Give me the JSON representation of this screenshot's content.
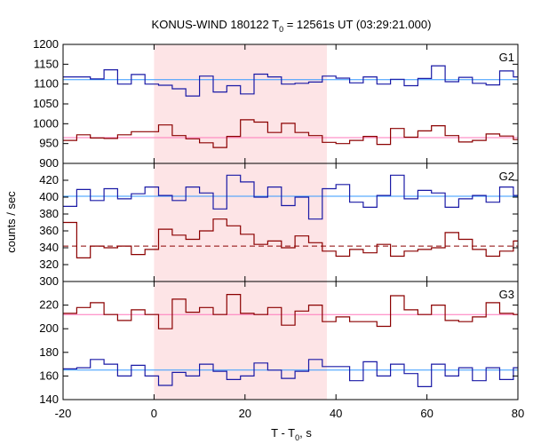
{
  "chart_data": {
    "type": "line",
    "title": "KONUS-WIND 180122 T",
    "title_sub": "0",
    "title_rest": " = 12561s UT (03:29:21.000)",
    "xlabel": "T - T",
    "xlabel_sub": "0",
    "xlabel_rest": ", s",
    "ylabel": "counts / sec",
    "xlim": [
      -20,
      80
    ],
    "x_ticks": [
      -20,
      0,
      20,
      40,
      60,
      80
    ],
    "x_tick_labels": [
      "-20",
      "0",
      "20",
      "40",
      "60",
      "80"
    ],
    "shaded_interval": [
      0,
      38
    ],
    "colors": {
      "dark_red": "#8b0000",
      "blue": "#1a1aa6",
      "pink": "#ff77bb",
      "light_blue": "#3399ff",
      "shade": "#fde4e6"
    },
    "panels": [
      {
        "label": "G1",
        "ylim": [
          900,
          1200
        ],
        "y_ticks": [
          900,
          950,
          1000,
          1050,
          1100,
          1150,
          1200
        ],
        "y_tick_labels": [
          "900",
          "950",
          "1000",
          "1050",
          "1100",
          "1150",
          "1200"
        ],
        "series": [
          {
            "color": "blue",
            "bg_level": 1111,
            "bg_color": "light_blue",
            "bg_dashed": false,
            "x": [
              -20,
              -17,
              -14,
              -11,
              -8,
              -5,
              -2,
              1,
              4,
              7,
              10,
              13,
              16,
              19,
              22,
              25,
              28,
              31,
              34,
              37,
              40,
              43,
              46,
              49,
              52,
              55,
              58,
              61,
              64,
              67,
              70,
              73,
              76,
              79
            ],
            "values": [
              1118,
              1118,
              1113,
              1136,
              1100,
              1124,
              1100,
              1097,
              1088,
              1070,
              1120,
              1080,
              1096,
              1075,
              1125,
              1118,
              1100,
              1102,
              1105,
              1120,
              1115,
              1103,
              1118,
              1100,
              1112,
              1096,
              1114,
              1146,
              1106,
              1117,
              1102,
              1098,
              1133,
              1118
            ]
          },
          {
            "color": "dark_red",
            "bg_level": 965,
            "bg_color": "pink",
            "bg_dashed": false,
            "x": [
              -20,
              -17,
              -14,
              -11,
              -8,
              -5,
              -2,
              1,
              4,
              7,
              10,
              13,
              16,
              19,
              22,
              25,
              28,
              31,
              34,
              37,
              40,
              43,
              46,
              49,
              52,
              55,
              58,
              61,
              64,
              67,
              70,
              73,
              76,
              79
            ],
            "values": [
              958,
              972,
              964,
              963,
              972,
              980,
              980,
              997,
              970,
              962,
              952,
              940,
              968,
              1010,
              1004,
              978,
              1001,
              978,
              970,
              953,
              950,
              958,
              968,
              948,
              988,
              966,
              982,
              995,
              970,
              954,
              958,
              974,
              969,
              960
            ]
          }
        ]
      },
      {
        "label": "G2",
        "ylim": [
          300,
          440
        ],
        "y_ticks": [
          300,
          320,
          340,
          360,
          380,
          400,
          420
        ],
        "y_tick_labels": [
          "300",
          "320",
          "340",
          "360",
          "380",
          "400",
          "420"
        ],
        "series": [
          {
            "color": "blue",
            "bg_level": 401,
            "bg_color": "light_blue",
            "bg_dashed": false,
            "x": [
              -20,
              -17,
              -14,
              -11,
              -8,
              -5,
              -2,
              1,
              4,
              7,
              10,
              13,
              16,
              19,
              22,
              25,
              28,
              31,
              34,
              37,
              40,
              43,
              46,
              49,
              52,
              55,
              58,
              61,
              64,
              67,
              70,
              73,
              76,
              79
            ],
            "values": [
              389,
              409,
              396,
              410,
              398,
              404,
              412,
              402,
              396,
              412,
              405,
              386,
              426,
              418,
              400,
              412,
              390,
              400,
              374,
              410,
              415,
              394,
              388,
              402,
              426,
              398,
              408,
              405,
              388,
              398,
              402,
              394,
              412,
              402
            ]
          },
          {
            "color": "dark_red",
            "bg_level": 342,
            "bg_color": "dark_red",
            "bg_dashed": true,
            "x": [
              -20,
              -17,
              -14,
              -11,
              -8,
              -5,
              -2,
              1,
              4,
              7,
              10,
              13,
              16,
              19,
              22,
              25,
              28,
              31,
              34,
              37,
              40,
              43,
              46,
              49,
              52,
              55,
              58,
              61,
              64,
              67,
              70,
              73,
              76,
              79
            ],
            "values": [
              370,
              328,
              342,
              340,
              342,
              332,
              338,
              362,
              355,
              350,
              360,
              374,
              366,
              356,
              344,
              348,
              340,
              354,
              346,
              336,
              330,
              338,
              334,
              344,
              330,
              336,
              338,
              340,
              358,
              350,
              338,
              330,
              336,
              348
            ]
          }
        ]
      },
      {
        "label": "G3",
        "ylim": [
          140,
          240
        ],
        "y_ticks": [
          140,
          160,
          180,
          200,
          220
        ],
        "y_tick_labels": [
          "140",
          "160",
          "180",
          "200",
          "220"
        ],
        "series": [
          {
            "color": "dark_red",
            "bg_level": 212,
            "bg_color": "pink",
            "bg_dashed": false,
            "x": [
              -20,
              -17,
              -14,
              -11,
              -8,
              -5,
              -2,
              1,
              4,
              7,
              10,
              13,
              16,
              19,
              22,
              25,
              28,
              31,
              34,
              37,
              40,
              43,
              46,
              49,
              52,
              55,
              58,
              61,
              64,
              67,
              70,
              73,
              76,
              79
            ],
            "values": [
              213,
              218,
              222,
              212,
              207,
              216,
              212,
              200,
              225,
              214,
              218,
              212,
              229,
              213,
              212,
              218,
              203,
              215,
              220,
              206,
              210,
              206,
              206,
              202,
              228,
              216,
              212,
              220,
              207,
              206,
              210,
              222,
              213,
              212
            ]
          },
          {
            "color": "blue",
            "bg_level": 165,
            "bg_color": "light_blue",
            "bg_dashed": false,
            "x": [
              -20,
              -17,
              -14,
              -11,
              -8,
              -5,
              -2,
              1,
              4,
              7,
              10,
              13,
              16,
              19,
              22,
              25,
              28,
              31,
              34,
              37,
              40,
              43,
              46,
              49,
              52,
              55,
              58,
              61,
              64,
              67,
              70,
              73,
              76,
              79
            ],
            "values": [
              166,
              167,
              174,
              170,
              160,
              169,
              160,
              152,
              163,
              160,
              170,
              164,
              157,
              160,
              171,
              165,
              158,
              164,
              174,
              168,
              168,
              156,
              172,
              160,
              170,
              162,
              151,
              170,
              160,
              167,
              156,
              167,
              157,
              167
            ]
          }
        ]
      }
    ]
  }
}
